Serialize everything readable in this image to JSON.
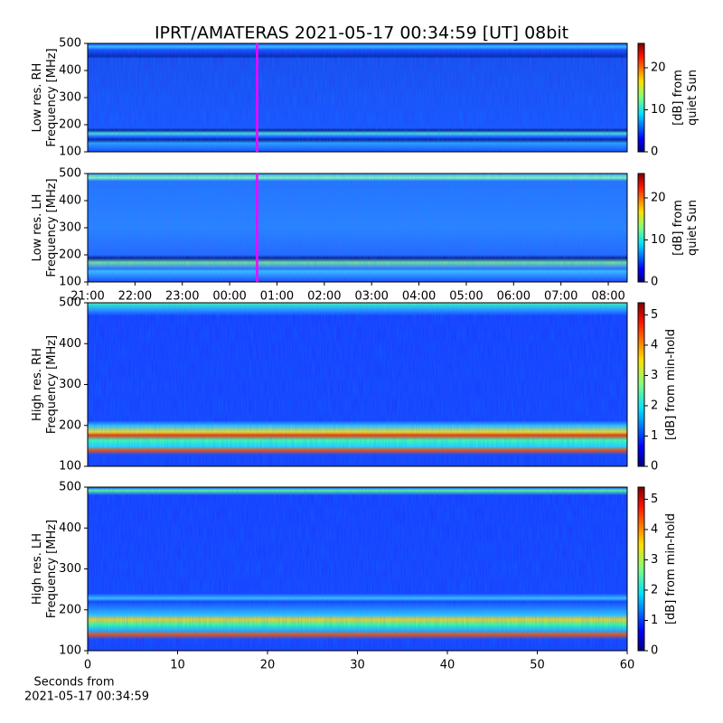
{
  "title": "IPRT/AMATERAS 2021-05-17 00:34:59 [UT]   08bit",
  "chart_data": [
    {
      "type": "spectrogram",
      "ylabel": [
        "Low res. RH",
        "Frequency [MHz]"
      ],
      "ylim": [
        100,
        500
      ],
      "yticks": [
        100,
        200,
        300,
        400,
        500
      ],
      "xlim": [
        21,
        32.4
      ],
      "cursor": {
        "x": 24.58,
        "color": "#ff00ff"
      },
      "colorbar": {
        "label": [
          "[dB] from",
          "quiet Sun"
        ],
        "lim": [
          0,
          25.8
        ],
        "ticks": [
          0,
          10,
          20
        ]
      }
    },
    {
      "type": "spectrogram",
      "ylabel": [
        "Low res. LH",
        "Frequency [MHz]"
      ],
      "ylim": [
        100,
        500
      ],
      "yticks": [
        100,
        200,
        300,
        400,
        500
      ],
      "xlim": [
        21,
        32.4
      ],
      "cursor": {
        "x": 24.58,
        "color": "#ff00ff"
      },
      "xticks": [
        {
          "value": 21,
          "label": "21:00"
        },
        {
          "value": 22,
          "label": "22:00"
        },
        {
          "value": 23,
          "label": "23:00"
        },
        {
          "value": 24,
          "label": "00:00"
        },
        {
          "value": 25,
          "label": "01:00"
        },
        {
          "value": 26,
          "label": "02:00"
        },
        {
          "value": 27,
          "label": "03:00"
        },
        {
          "value": 28,
          "label": "04:00"
        },
        {
          "value": 29,
          "label": "05:00"
        },
        {
          "value": 30,
          "label": "06:00"
        },
        {
          "value": 31,
          "label": "07:00"
        },
        {
          "value": 32,
          "label": "08:00"
        }
      ],
      "colorbar": {
        "label": [
          "[dB] from",
          "quiet Sun"
        ],
        "lim": [
          0,
          25.8
        ],
        "ticks": [
          0,
          10,
          20
        ]
      }
    },
    {
      "type": "spectrogram",
      "ylabel": [
        "High res. RH",
        "Frequency [MHz]"
      ],
      "ylim": [
        100,
        500
      ],
      "yticks": [
        100,
        200,
        300,
        400,
        500
      ],
      "xlim": [
        0,
        60
      ],
      "colorbar": {
        "label": [
          "[dB] from min-hold"
        ],
        "lim": [
          0,
          5.4
        ],
        "ticks": [
          0,
          1,
          2,
          3,
          4,
          5
        ]
      }
    },
    {
      "type": "spectrogram",
      "ylabel": [
        "High res. LH",
        "Frequency [MHz]"
      ],
      "ylim": [
        100,
        500
      ],
      "yticks": [
        100,
        200,
        300,
        400,
        500
      ],
      "xlim": [
        0,
        60
      ],
      "xticks": [
        0,
        10,
        20,
        30,
        40,
        50,
        60
      ],
      "xlabel": [
        "Seconds from",
        "2021-05-17 00:34:59"
      ],
      "colorbar": {
        "label": [
          "[dB] from min-hold"
        ],
        "lim": [
          0,
          5.4
        ],
        "ticks": [
          0,
          1,
          2,
          3,
          4,
          5
        ]
      }
    }
  ]
}
